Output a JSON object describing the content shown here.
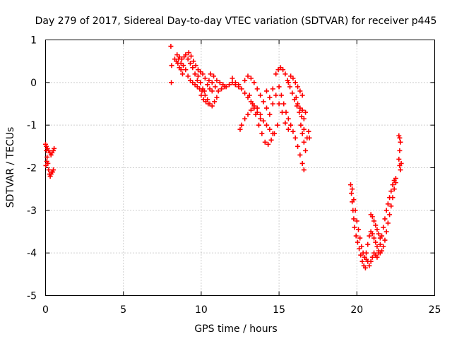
{
  "chart_data": {
    "type": "scatter",
    "title": "Day 279 of 2017, Sidereal Day-to-day VTEC variation (SDTVAR) for receiver p445",
    "xlabel": "GPS time / hours",
    "ylabel": "SDTVAR / TECUs",
    "xlim": [
      0,
      25
    ],
    "ylim": [
      -5,
      1
    ],
    "xticks": [
      0,
      5,
      10,
      15,
      20,
      25
    ],
    "xtick_labels": [
      "0",
      "5",
      "10",
      "15",
      "20",
      "25"
    ],
    "yticks": [
      1,
      0,
      -1,
      -2,
      -3,
      -4,
      -5
    ],
    "ytick_labels": [
      "1",
      "0",
      "-1",
      "-2",
      "-3",
      "-4",
      "-5"
    ],
    "grid": true,
    "marker": "+",
    "color": "#ff0000",
    "series": [
      {
        "name": "p445 SDTVAR",
        "points": [
          [
            0.0,
            -1.45
          ],
          [
            0.05,
            -1.6
          ],
          [
            0.1,
            -1.75
          ],
          [
            0.15,
            -1.9
          ],
          [
            0.2,
            -2.05
          ],
          [
            0.25,
            -2.15
          ],
          [
            0.3,
            -2.2
          ],
          [
            0.35,
            -2.15
          ],
          [
            0.4,
            -2.1
          ],
          [
            0.45,
            -2.1
          ],
          [
            0.5,
            -2.05
          ],
          [
            0.05,
            -1.5
          ],
          [
            0.12,
            -1.55
          ],
          [
            0.2,
            -1.6
          ],
          [
            0.28,
            -1.65
          ],
          [
            0.35,
            -1.7
          ],
          [
            0.42,
            -1.65
          ],
          [
            0.5,
            -1.6
          ],
          [
            0.55,
            -1.55
          ],
          [
            0.02,
            -1.95
          ],
          [
            0.08,
            -1.85
          ],
          [
            8.05,
            0.85
          ],
          [
            8.08,
            0.0
          ],
          [
            8.1,
            0.4
          ],
          [
            8.3,
            0.55
          ],
          [
            8.4,
            0.5
          ],
          [
            8.5,
            0.45
          ],
          [
            8.6,
            0.35
          ],
          [
            8.7,
            0.3
          ],
          [
            8.8,
            0.2
          ],
          [
            8.45,
            0.65
          ],
          [
            8.6,
            0.6
          ],
          [
            8.75,
            0.55
          ],
          [
            8.9,
            0.6
          ],
          [
            9.0,
            0.65
          ],
          [
            9.15,
            0.55
          ],
          [
            9.3,
            0.45
          ],
          [
            9.45,
            0.35
          ],
          [
            9.6,
            0.2
          ],
          [
            9.75,
            0.05
          ],
          [
            8.55,
            0.55
          ],
          [
            8.7,
            0.45
          ],
          [
            8.85,
            0.4
          ],
          [
            9.0,
            0.3
          ],
          [
            9.15,
            0.15
          ],
          [
            9.3,
            0.05
          ],
          [
            9.45,
            0.0
          ],
          [
            9.6,
            -0.05
          ],
          [
            9.75,
            -0.1
          ],
          [
            9.9,
            -0.15
          ],
          [
            10.05,
            -0.2
          ],
          [
            10.2,
            -0.2
          ],
          [
            9.2,
            0.7
          ],
          [
            9.35,
            0.62
          ],
          [
            9.5,
            0.5
          ],
          [
            9.65,
            0.4
          ],
          [
            9.8,
            0.3
          ],
          [
            9.95,
            0.25
          ],
          [
            10.1,
            0.2
          ],
          [
            10.25,
            0.1
          ],
          [
            10.4,
            -0.05
          ],
          [
            10.55,
            -0.15
          ],
          [
            10.7,
            -0.2
          ],
          [
            9.8,
            0.15
          ],
          [
            9.95,
            0.0
          ],
          [
            10.1,
            -0.15
          ],
          [
            10.25,
            -0.3
          ],
          [
            10.4,
            -0.4
          ],
          [
            10.55,
            -0.5
          ],
          [
            10.7,
            -0.55
          ],
          [
            10.85,
            -0.45
          ],
          [
            11.0,
            -0.35
          ],
          [
            10.0,
            -0.3
          ],
          [
            10.15,
            -0.4
          ],
          [
            10.3,
            -0.45
          ],
          [
            10.45,
            -0.5
          ],
          [
            10.6,
            0.2
          ],
          [
            10.8,
            0.15
          ],
          [
            11.0,
            0.05
          ],
          [
            11.2,
            0.0
          ],
          [
            11.4,
            -0.05
          ],
          [
            11.6,
            -0.1
          ],
          [
            11.8,
            -0.05
          ],
          [
            12.0,
            0.0
          ],
          [
            12.2,
            -0.05
          ],
          [
            12.4,
            -0.1
          ],
          [
            10.5,
            0.05
          ],
          [
            10.7,
            0.0
          ],
          [
            10.9,
            -0.1
          ],
          [
            11.1,
            -0.2
          ],
          [
            11.3,
            -0.15
          ],
          [
            11.5,
            -0.1
          ],
          [
            12.0,
            0.1
          ],
          [
            12.2,
            0.0
          ],
          [
            12.4,
            -0.05
          ],
          [
            12.6,
            -0.15
          ],
          [
            12.8,
            -0.25
          ],
          [
            13.0,
            -0.35
          ],
          [
            13.2,
            -0.45
          ],
          [
            13.4,
            -0.55
          ],
          [
            12.5,
            -1.1
          ],
          [
            12.6,
            -1.0
          ],
          [
            12.8,
            -0.85
          ],
          [
            13.0,
            -0.75
          ],
          [
            13.2,
            -0.65
          ],
          [
            13.4,
            -0.6
          ],
          [
            13.6,
            -0.7
          ],
          [
            13.8,
            -0.85
          ],
          [
            12.8,
            0.05
          ],
          [
            13.0,
            0.15
          ],
          [
            13.2,
            0.1
          ],
          [
            13.4,
            0.0
          ],
          [
            13.6,
            -0.15
          ],
          [
            13.8,
            -0.3
          ],
          [
            14.0,
            -0.45
          ],
          [
            14.2,
            -0.6
          ],
          [
            14.4,
            -0.75
          ],
          [
            13.1,
            -0.3
          ],
          [
            13.3,
            -0.5
          ],
          [
            13.5,
            -0.75
          ],
          [
            13.7,
            -1.0
          ],
          [
            13.9,
            -1.2
          ],
          [
            14.1,
            -1.4
          ],
          [
            14.3,
            -1.45
          ],
          [
            14.5,
            -1.35
          ],
          [
            14.7,
            -1.2
          ],
          [
            14.9,
            -1.0
          ],
          [
            13.6,
            -0.6
          ],
          [
            13.8,
            -0.75
          ],
          [
            14.0,
            -0.9
          ],
          [
            14.2,
            -1.0
          ],
          [
            14.4,
            -1.1
          ],
          [
            14.6,
            -1.2
          ],
          [
            14.8,
            0.2
          ],
          [
            14.95,
            0.3
          ],
          [
            15.1,
            0.35
          ],
          [
            15.25,
            0.3
          ],
          [
            15.4,
            0.2
          ],
          [
            15.55,
            0.05
          ],
          [
            15.7,
            -0.1
          ],
          [
            15.85,
            -0.25
          ],
          [
            16.0,
            -0.4
          ],
          [
            16.15,
            -0.55
          ],
          [
            16.3,
            -0.7
          ],
          [
            16.45,
            -0.8
          ],
          [
            16.6,
            -0.85
          ],
          [
            15.0,
            -0.1
          ],
          [
            15.15,
            -0.3
          ],
          [
            15.3,
            -0.5
          ],
          [
            15.45,
            -0.7
          ],
          [
            15.6,
            -0.85
          ],
          [
            15.75,
            -1.0
          ],
          [
            15.9,
            -1.15
          ],
          [
            16.05,
            -1.3
          ],
          [
            16.2,
            -1.5
          ],
          [
            16.35,
            -1.7
          ],
          [
            16.5,
            -1.9
          ],
          [
            16.6,
            -2.05
          ],
          [
            14.6,
            -0.15
          ],
          [
            14.8,
            -0.3
          ],
          [
            15.0,
            -0.5
          ],
          [
            15.2,
            -0.7
          ],
          [
            15.4,
            -0.95
          ],
          [
            15.6,
            -1.1
          ],
          [
            14.2,
            -0.2
          ],
          [
            14.4,
            -0.35
          ],
          [
            14.6,
            -0.5
          ],
          [
            15.6,
            0.0
          ],
          [
            15.75,
            0.15
          ],
          [
            15.9,
            0.1
          ],
          [
            16.05,
            0.0
          ],
          [
            16.2,
            -0.1
          ],
          [
            16.35,
            -0.2
          ],
          [
            16.5,
            -0.3
          ],
          [
            16.1,
            -0.35
          ],
          [
            16.2,
            -0.5
          ],
          [
            16.35,
            -0.6
          ],
          [
            16.5,
            -0.65
          ],
          [
            16.7,
            -0.7
          ],
          [
            16.6,
            -1.4
          ],
          [
            16.7,
            -1.6
          ],
          [
            16.8,
            -1.3
          ],
          [
            16.9,
            -1.15
          ],
          [
            16.95,
            -1.3
          ],
          [
            16.4,
            -1.0
          ],
          [
            16.5,
            -1.2
          ],
          [
            16.6,
            -1.1
          ],
          [
            19.6,
            -2.4
          ],
          [
            19.65,
            -2.6
          ],
          [
            19.7,
            -2.8
          ],
          [
            19.75,
            -3.0
          ],
          [
            19.8,
            -3.2
          ],
          [
            19.85,
            -3.4
          ],
          [
            19.95,
            -3.6
          ],
          [
            20.05,
            -3.75
          ],
          [
            20.15,
            -3.9
          ],
          [
            20.25,
            -4.05
          ],
          [
            20.35,
            -4.2
          ],
          [
            20.45,
            -4.3
          ],
          [
            20.55,
            -4.35
          ],
          [
            19.7,
            -2.5
          ],
          [
            19.8,
            -2.75
          ],
          [
            19.9,
            -3.0
          ],
          [
            20.0,
            -3.25
          ],
          [
            20.1,
            -3.45
          ],
          [
            20.2,
            -3.65
          ],
          [
            20.3,
            -3.85
          ],
          [
            20.4,
            -4.0
          ],
          [
            20.5,
            -4.1
          ],
          [
            20.6,
            -4.15
          ],
          [
            20.7,
            -4.2
          ],
          [
            20.8,
            -4.3
          ],
          [
            20.6,
            -4.0
          ],
          [
            20.7,
            -3.8
          ],
          [
            20.8,
            -3.6
          ],
          [
            20.9,
            -3.5
          ],
          [
            21.0,
            -3.55
          ],
          [
            21.1,
            -3.65
          ],
          [
            21.2,
            -3.75
          ],
          [
            21.3,
            -3.85
          ],
          [
            21.4,
            -3.95
          ],
          [
            21.5,
            -4.0
          ],
          [
            21.6,
            -3.95
          ],
          [
            21.7,
            -3.85
          ],
          [
            20.9,
            -4.2
          ],
          [
            21.0,
            -4.1
          ],
          [
            21.1,
            -4.0
          ],
          [
            21.2,
            -4.05
          ],
          [
            21.3,
            -4.1
          ],
          [
            21.4,
            -4.0
          ],
          [
            21.5,
            -3.8
          ],
          [
            21.6,
            -3.6
          ],
          [
            21.7,
            -3.4
          ],
          [
            21.8,
            -3.2
          ],
          [
            21.9,
            -3.0
          ],
          [
            22.0,
            -2.85
          ],
          [
            22.1,
            -2.7
          ],
          [
            22.2,
            -2.55
          ],
          [
            22.3,
            -2.4
          ],
          [
            22.4,
            -2.3
          ],
          [
            22.5,
            -2.25
          ],
          [
            21.8,
            -3.7
          ],
          [
            21.9,
            -3.5
          ],
          [
            22.0,
            -3.3
          ],
          [
            22.1,
            -3.1
          ],
          [
            22.2,
            -2.9
          ],
          [
            22.3,
            -2.7
          ],
          [
            22.4,
            -2.5
          ],
          [
            22.5,
            -2.35
          ],
          [
            20.9,
            -3.1
          ],
          [
            21.0,
            -3.15
          ],
          [
            21.1,
            -3.25
          ],
          [
            21.2,
            -3.35
          ],
          [
            21.3,
            -3.45
          ],
          [
            21.4,
            -3.55
          ],
          [
            21.5,
            -3.65
          ],
          [
            22.7,
            -1.25
          ],
          [
            22.75,
            -1.3
          ],
          [
            22.8,
            -1.4
          ],
          [
            22.7,
            -1.8
          ],
          [
            22.75,
            -1.95
          ],
          [
            22.8,
            -2.05
          ],
          [
            22.85,
            -1.9
          ],
          [
            22.75,
            -1.6
          ]
        ]
      }
    ]
  }
}
